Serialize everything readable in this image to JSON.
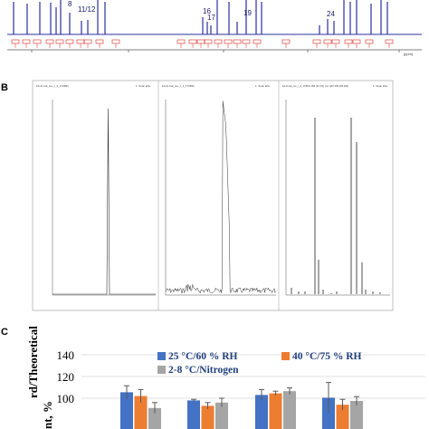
{
  "panel_letters": {
    "b": "B",
    "c": "C"
  },
  "nmr_panel": {
    "peak_labels": [
      "8",
      "11/12",
      "16",
      "17",
      "19",
      "24"
    ],
    "axis_unit": "[ppm]",
    "colors": {
      "spectrum": "#2b2fa0",
      "integral": "#d8271e"
    }
  },
  "ms_panel": {
    "panes": [
      {
        "name": "tic-chromatogram",
        "header": "FA-D-Cat_tev_r_2_170831",
        "header_right": "1: Scan ES+"
      },
      {
        "name": "total-ion-chromatogram",
        "header": "FA-D-Cat_tev_r_2_170831",
        "header_right": "1: Scan ES+"
      },
      {
        "name": "mass-spectrum",
        "header": "FA-D-Cat_tev_r_2_170831 188 (11.971) Cm (187:195-186:183)",
        "header_right": "1: Scan ES+"
      }
    ]
  },
  "chart_data": {
    "type": "bar",
    "categories": [
      "",
      "",
      "",
      ""
    ],
    "series": [
      {
        "name": "25 °C/60 % RH",
        "color": "#4472c4",
        "values": [
          105.5,
          98,
          103,
          100.5
        ],
        "errors": [
          6,
          1,
          5,
          14
        ]
      },
      {
        "name": "40 °C/75 % RH",
        "color": "#ed7d31",
        "values": [
          102,
          93,
          104.5,
          94
        ],
        "errors": [
          6,
          3,
          2,
          5
        ]
      },
      {
        "name": "2-8 °C/Nitrogen",
        "color": "#a5a5a5",
        "values": [
          91,
          96,
          106.5,
          97.5
        ],
        "errors": [
          5,
          4,
          3,
          4
        ]
      }
    ],
    "ylim": [
      80,
      140
    ],
    "yticks": [
      "140",
      "120",
      "100"
    ],
    "ylabel_lines": [
      "rd/Theoretical",
      "nt, %"
    ]
  }
}
